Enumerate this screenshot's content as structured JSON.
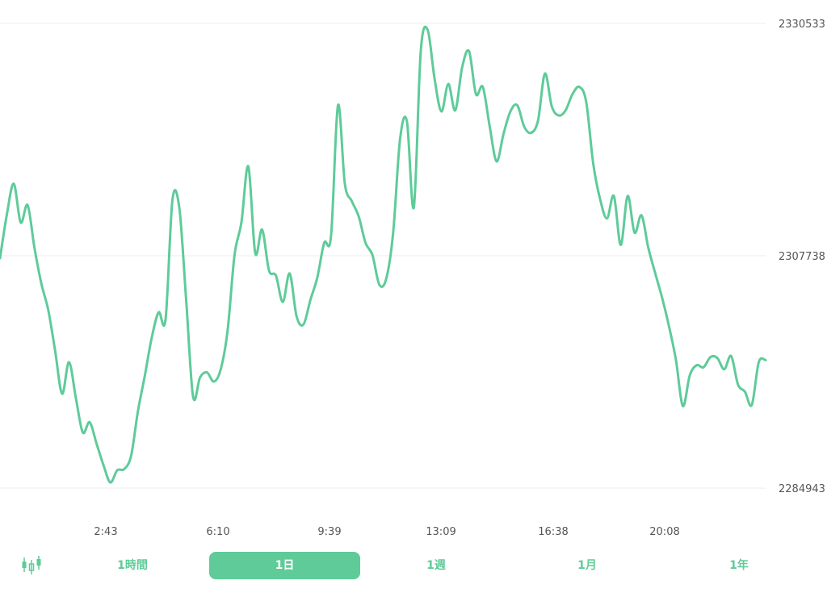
{
  "colors": {
    "line": "#5ecb99",
    "accent": "#5ecb99",
    "grid": "#eeeeee",
    "tick": "#555555"
  },
  "chart_data": {
    "type": "line",
    "y_ticks": [
      "2330533",
      "2307738",
      "2284943"
    ],
    "ylim": [
      2284943,
      2330533
    ],
    "x_ticks": [
      "2:43",
      "6:10",
      "9:39",
      "13:09",
      "16:38",
      "20:08"
    ],
    "grid": "horizontal",
    "series": [
      {
        "values": [
          2307500,
          2311800,
          2314800,
          2311000,
          2312700,
          2308500,
          2305000,
          2302400,
          2298400,
          2294200,
          2297300,
          2293800,
          2290400,
          2291400,
          2289300,
          2287200,
          2285500,
          2286700,
          2286800,
          2288100,
          2292500,
          2296000,
          2299700,
          2302200,
          2301500,
          2313200,
          2312400,
          2303300,
          2293900,
          2295800,
          2296300,
          2295400,
          2296600,
          2300400,
          2307800,
          2311000,
          2316500,
          2308000,
          2310300,
          2306300,
          2305800,
          2303200,
          2306000,
          2301800,
          2301000,
          2303400,
          2305600,
          2309000,
          2309700,
          2322500,
          2314800,
          2313100,
          2311600,
          2309000,
          2307800,
          2304900,
          2305500,
          2310000,
          2319200,
          2320900,
          2312500,
          2327800,
          2329900,
          2325100,
          2321900,
          2324600,
          2322000,
          2326200,
          2327800,
          2323600,
          2324300,
          2320400,
          2317000,
          2319700,
          2321900,
          2322500,
          2320400,
          2319800,
          2321000,
          2325600,
          2322400,
          2321500,
          2322000,
          2323600,
          2324300,
          2322800,
          2316800,
          2313300,
          2311400,
          2313600,
          2308800,
          2313600,
          2310000,
          2311700,
          2308500,
          2306000,
          2303600,
          2300800,
          2297500,
          2293000,
          2296000,
          2297000,
          2296800,
          2297800,
          2297700,
          2296600,
          2297900,
          2295100,
          2294400,
          2293100,
          2297300,
          2297500
        ]
      }
    ]
  },
  "range_selector": {
    "candle_icon": "candlestick-icon",
    "options": [
      {
        "label": "1時間",
        "active": false
      },
      {
        "label": "1日",
        "active": true
      },
      {
        "label": "1週",
        "active": false
      },
      {
        "label": "1月",
        "active": false
      },
      {
        "label": "1年",
        "active": false
      }
    ]
  }
}
